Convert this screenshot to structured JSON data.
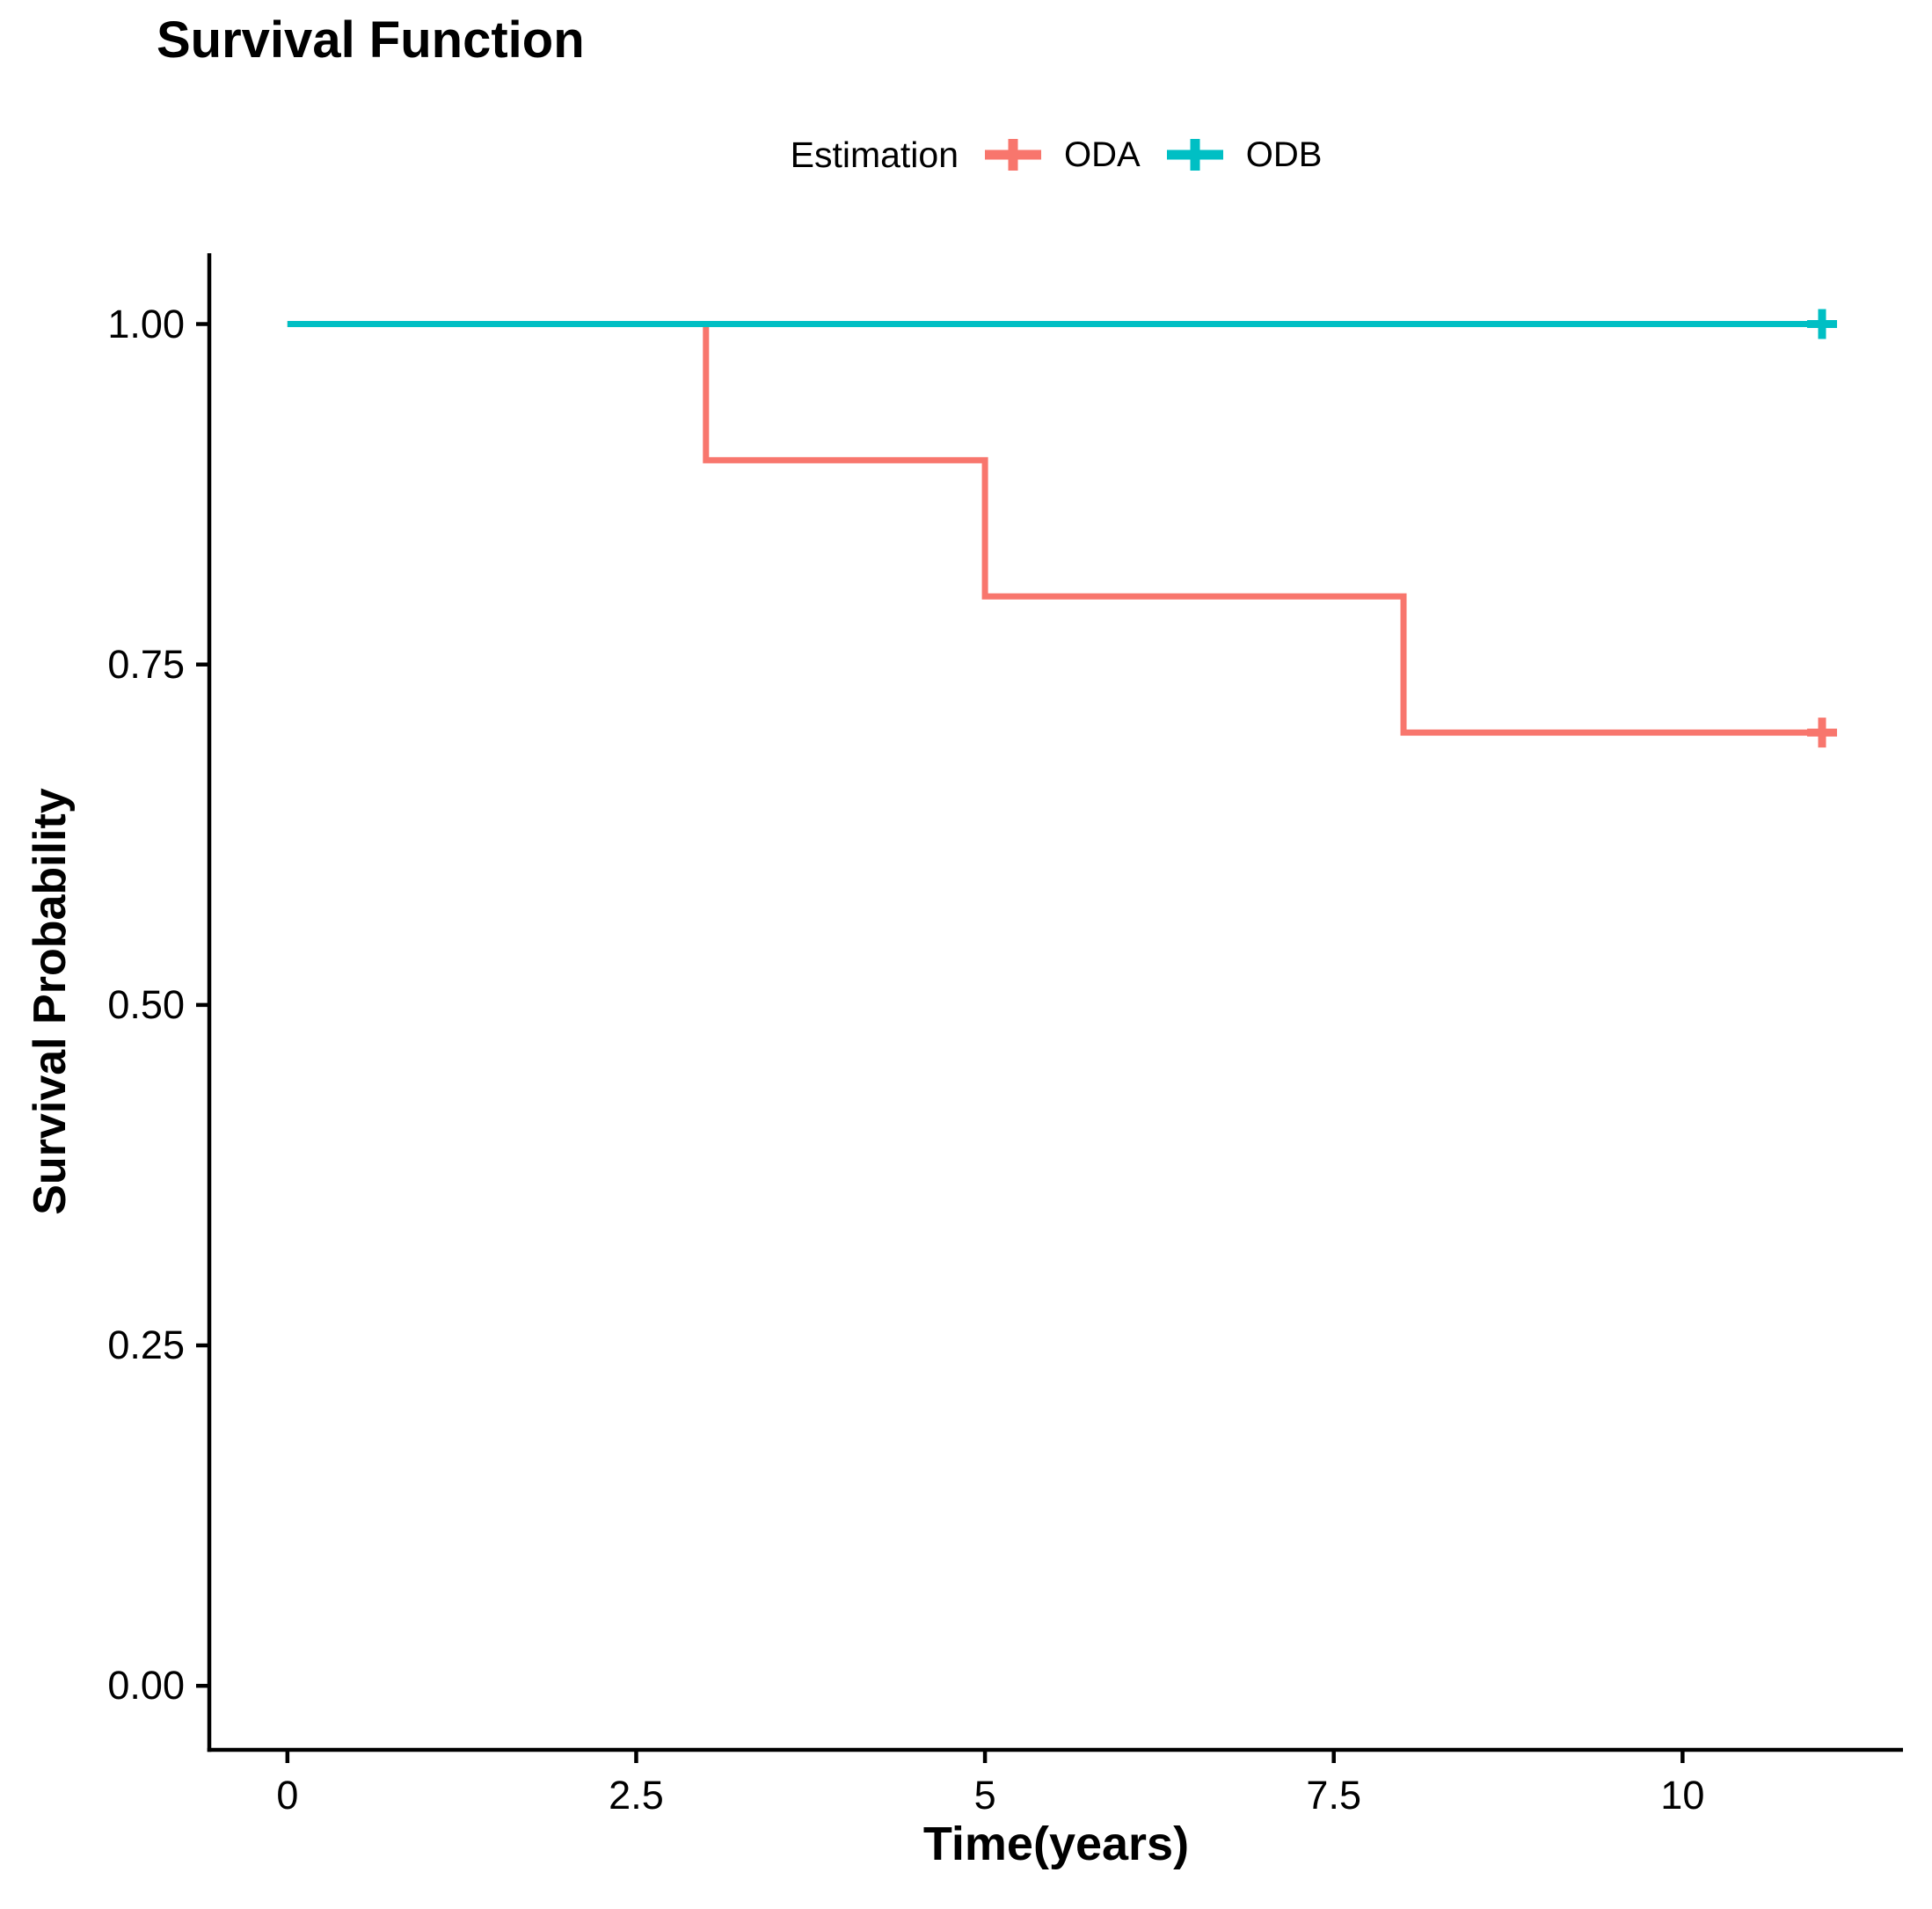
{
  "figure": {
    "background_color": "#FFFFFF",
    "axis_color": "#000000",
    "text_color": "#000000"
  },
  "chart_data": {
    "type": "line",
    "variant": "kaplan_meier_step",
    "title": "Survival Function",
    "xlabel": "Time(years)",
    "ylabel": "Survival Probability",
    "grid": false,
    "legend": {
      "title": "Estimation",
      "position": "top-center",
      "entries": [
        "ODA",
        "ODB"
      ]
    },
    "x_ticks": {
      "values": [
        0,
        2.5,
        5,
        7.5,
        10
      ],
      "labels": [
        "0",
        "2.5",
        "5",
        "7.5",
        "10"
      ]
    },
    "y_ticks": {
      "values": [
        0,
        0.25,
        0.5,
        0.75,
        1
      ],
      "labels": [
        "0.00",
        "0.25",
        "0.50",
        "0.75",
        "1.00"
      ]
    },
    "xlim": [
      -0.56,
      11.58
    ],
    "ylim": [
      -0.047,
      1.052
    ],
    "series": [
      {
        "name": "ODA",
        "color": "#F8766D",
        "step_points": [
          [
            0,
            1.0
          ],
          [
            3,
            1.0
          ],
          [
            3,
            0.9
          ],
          [
            5,
            0.9
          ],
          [
            5,
            0.8
          ],
          [
            8,
            0.8
          ],
          [
            8,
            0.7
          ],
          [
            11,
            0.7
          ]
        ],
        "events": [
          {
            "time": 3,
            "survival": 0.9
          },
          {
            "time": 5,
            "survival": 0.8
          },
          {
            "time": 8,
            "survival": 0.7
          }
        ],
        "censored": [
          [
            11,
            0.7
          ]
        ]
      },
      {
        "name": "ODB",
        "color": "#00BFC4",
        "step_points": [
          [
            0,
            1.0
          ],
          [
            11,
            1.0
          ]
        ],
        "events": [],
        "censored": [
          [
            11,
            1.0
          ]
        ]
      }
    ]
  }
}
